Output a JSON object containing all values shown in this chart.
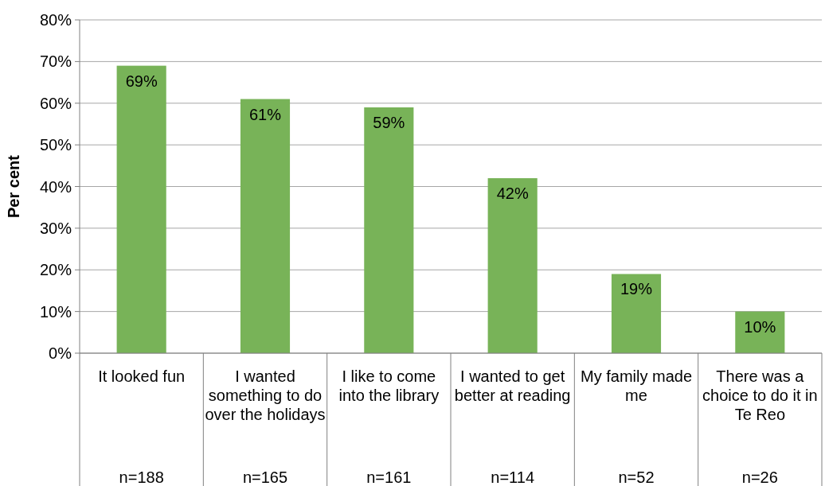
{
  "chart_data": {
    "type": "bar",
    "ylabel": "Per cent",
    "categories": [
      "It looked fun\nn=188",
      "I wanted something to do over the holidays\nn=165",
      "I like to come into the library\nn=161",
      "I wanted to get better at reading\nn=114",
      "My family made me\nn=52",
      "There was a choice to do it in Te Reo\nn=26"
    ],
    "values": [
      69,
      61,
      59,
      42,
      19,
      10
    ],
    "value_labels": [
      "69%",
      "61%",
      "59%",
      "42%",
      "19%",
      "10%"
    ],
    "color": "#78b358",
    "ylim": [
      0,
      80
    ],
    "yticks": [
      {
        "value": 0,
        "label": "0%"
      },
      {
        "value": 10,
        "label": "10%"
      },
      {
        "value": 20,
        "label": "20%"
      },
      {
        "value": 30,
        "label": "30%"
      },
      {
        "value": 40,
        "label": "40%"
      },
      {
        "value": 50,
        "label": "50%"
      },
      {
        "value": 60,
        "label": "60%"
      },
      {
        "value": 70,
        "label": "70%"
      },
      {
        "value": 80,
        "label": "80%"
      }
    ],
    "grid": "y"
  }
}
